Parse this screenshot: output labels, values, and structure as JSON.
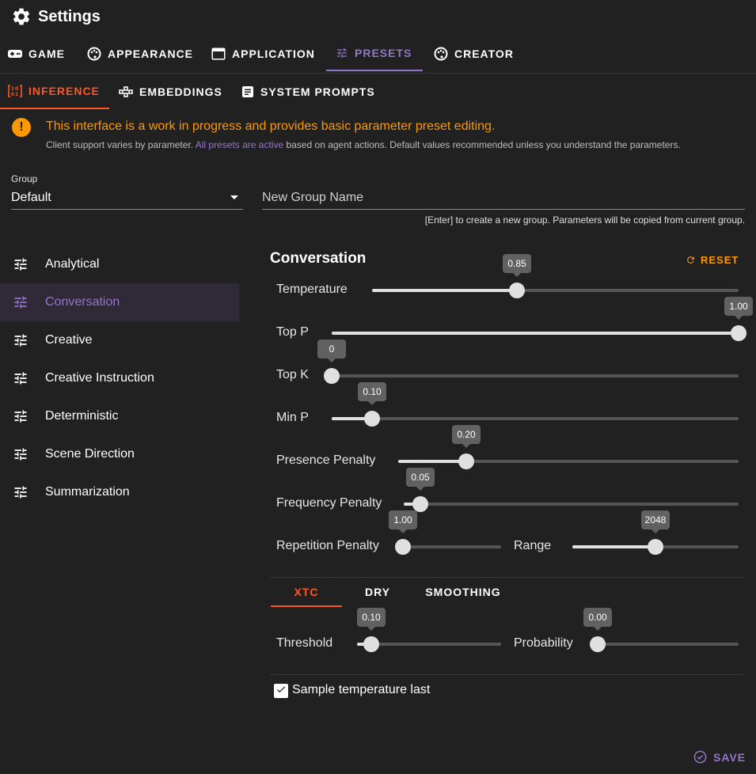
{
  "app": {
    "title": "Settings"
  },
  "main_tabs": [
    {
      "label": "GAME",
      "icon": "gamepad-icon"
    },
    {
      "label": "APPEARANCE",
      "icon": "palette-icon"
    },
    {
      "label": "APPLICATION",
      "icon": "application-icon"
    },
    {
      "label": "PRESETS",
      "icon": "tune-icon",
      "active": true
    },
    {
      "label": "CREATOR",
      "icon": "palette-icon"
    }
  ],
  "sub_tabs": [
    {
      "label": "INFERENCE",
      "icon": "inference-icon",
      "active": true
    },
    {
      "label": "EMBEDDINGS",
      "icon": "embeddings-icon"
    },
    {
      "label": "SYSTEM PROMPTS",
      "icon": "document-icon"
    }
  ],
  "alert": {
    "title": "This interface is a work in progress and provides basic parameter preset editing.",
    "sub_before": "Client support varies by parameter.",
    "sub_link": "All presets are active",
    "sub_after": "based on agent actions. Default values recommended unless you understand the parameters."
  },
  "group": {
    "label": "Group",
    "value": "Default"
  },
  "new_group": {
    "placeholder": "New Group Name",
    "hint": "[Enter] to create a new group. Parameters will be copied from current group."
  },
  "presets": [
    "Analytical",
    "Conversation",
    "Creative",
    "Creative Instruction",
    "Deterministic",
    "Scene Direction",
    "Summarization"
  ],
  "active_preset": "Conversation",
  "panel": {
    "title": "Conversation",
    "reset_label": "RESET"
  },
  "sliders": {
    "temperature": {
      "label": "Temperature",
      "value": "0.85",
      "fraction": 0.395
    },
    "top_p": {
      "label": "Top P",
      "value": "1.00",
      "fraction": 1.0
    },
    "top_k": {
      "label": "Top K",
      "value": "0",
      "fraction": 0.0
    },
    "min_p": {
      "label": "Min P",
      "value": "0.10",
      "fraction": 0.1
    },
    "presence_penalty": {
      "label": "Presence Penalty",
      "value": "0.20",
      "fraction": 0.2
    },
    "frequency_penalty": {
      "label": "Frequency Penalty",
      "value": "0.05",
      "fraction": 0.05
    },
    "repetition_penalty": {
      "label": "Repetition Penalty",
      "value": "1.00",
      "fraction": 0.0
    },
    "range": {
      "label": "Range",
      "value": "2048",
      "fraction": 0.5
    },
    "threshold": {
      "label": "Threshold",
      "value": "0.10",
      "fraction": 0.1
    },
    "probability": {
      "label": "Probability",
      "value": "0.00",
      "fraction": 0.0
    }
  },
  "sampler_tabs": [
    {
      "label": "XTC",
      "active": true
    },
    {
      "label": "DRY"
    },
    {
      "label": "SMOOTHING"
    }
  ],
  "sample_temperature_last": {
    "label": "Sample temperature last",
    "checked": true
  },
  "save_label": "SAVE",
  "colors": {
    "accent": "#9575cd",
    "secondary": "#ff5722",
    "warning": "#ff9800",
    "background": "#212121"
  }
}
